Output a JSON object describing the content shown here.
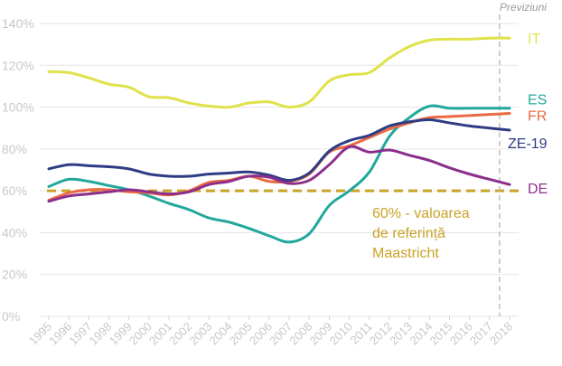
{
  "chart_data": {
    "type": "line",
    "x": [
      "1995",
      "1996",
      "1997",
      "1998",
      "1999",
      "2000",
      "2001",
      "2002",
      "2003",
      "2004",
      "2005",
      "2006",
      "2007",
      "2008",
      "2009",
      "2010",
      "2011",
      "2012",
      "2013",
      "2014",
      "2015",
      "2016",
      "2017",
      "2018"
    ],
    "ylim": [
      0,
      140
    ],
    "yticks": [
      "0%",
      "20%",
      "40%",
      "60%",
      "80%",
      "100%",
      "120%",
      "140%"
    ],
    "ytick_values": [
      0,
      20,
      40,
      60,
      80,
      100,
      120,
      140
    ],
    "grid": "horizontal",
    "forecast": {
      "label": "Previziuni",
      "x": "2017.5"
    },
    "reference_line": {
      "value": 60,
      "color": "#c9a227"
    },
    "annotation": [
      "60% - valoarea",
      "de referință",
      "Maastricht"
    ],
    "series": [
      {
        "name": "IT",
        "color": "#dfe24a",
        "values": [
          117,
          116.5,
          114,
          111,
          109.5,
          105,
          104.5,
          102,
          100.5,
          100,
          102,
          102.5,
          100,
          102.5,
          112.5,
          115.5,
          116.5,
          123.5,
          129,
          132,
          132.5,
          132.5,
          133,
          133
        ]
      },
      {
        "name": "ES",
        "color": "#21a89b",
        "values": [
          62,
          65.5,
          64.5,
          62.5,
          60.5,
          57.5,
          54,
          51,
          47,
          45,
          42,
          38.5,
          35.5,
          39.5,
          53,
          60,
          69,
          86,
          95,
          100.5,
          99.5,
          99.5,
          99.5,
          99.5
        ]
      },
      {
        "name": "FR",
        "color": "#ea6a43",
        "values": [
          55.5,
          59,
          60.5,
          60.5,
          59.5,
          59,
          58,
          60,
          64,
          65,
          67,
          64.5,
          64.5,
          68,
          78.5,
          81.5,
          85.5,
          89.5,
          92.5,
          95,
          95.5,
          96,
          96.5,
          97
        ]
      },
      {
        "name": "ZE-19",
        "color": "#2e3c84",
        "values": [
          70.5,
          72.5,
          72,
          71.5,
          70.5,
          68,
          67,
          67,
          68,
          68.5,
          69,
          67.5,
          65,
          68.5,
          79,
          84,
          86.5,
          91,
          93,
          94,
          92.5,
          91,
          90,
          89
        ]
      },
      {
        "name": "DE",
        "color": "#8c2f8c",
        "values": [
          55,
          57.5,
          58.5,
          59.5,
          60.5,
          59.5,
          58.5,
          59.5,
          63,
          64.5,
          67,
          66.5,
          63.5,
          65,
          72.5,
          81,
          78.5,
          79.5,
          77,
          74.5,
          71,
          68,
          65.5,
          63
        ]
      }
    ]
  }
}
